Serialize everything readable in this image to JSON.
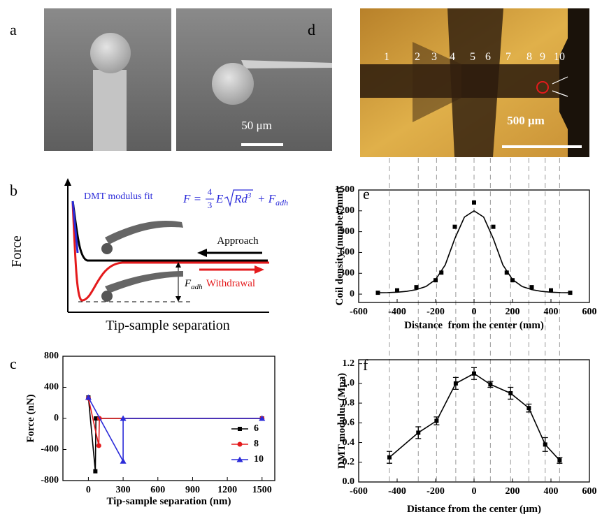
{
  "panels": {
    "a": {
      "label": "a",
      "scale": "50 μm"
    },
    "b": {
      "label": "b",
      "fit_label": "DMT modulus fit",
      "formula": {
        "lhs": "F =",
        "num": "4",
        "den": "3",
        "e": "E",
        "root": "Rd",
        "root_exp": "3",
        "plus": "+ F",
        "sub": "adh"
      },
      "approach": "Approach",
      "withdrawal": "Withdrawal",
      "f_adh": {
        "symbol": "F",
        "sub": "adh"
      },
      "ylabel": "Force",
      "xlabel": "Tip-sample separation"
    },
    "c": {
      "label": "c"
    },
    "d": {
      "label": "d",
      "positions": [
        "1",
        "2",
        "3",
        "4",
        "5",
        "6",
        "7",
        "8",
        "9",
        "10"
      ],
      "scale": "500 μm"
    },
    "e": {
      "label": "e"
    },
    "f": {
      "label": "f"
    }
  },
  "chart_data": [
    {
      "type": "line",
      "xlabel": "Tip-sample separation (nm)",
      "ylabel": "Force (nN)",
      "xlim": [
        -220,
        1610
      ],
      "ylim": [
        -800,
        800
      ],
      "xticks": [
        0,
        300,
        600,
        900,
        1200,
        1500
      ],
      "yticks": [
        -800,
        -400,
        0,
        400,
        800
      ],
      "legend": "lower right",
      "series": [
        {
          "name": "6",
          "color": "#000000",
          "marker": "square",
          "style": "line+markers",
          "x": [
            0,
            60,
            65,
            1500
          ],
          "values": [
            270,
            -680,
            0,
            0
          ]
        },
        {
          "name": "8",
          "color": "#e41a1c",
          "marker": "circle",
          "style": "line+markers",
          "x": [
            0,
            90,
            95,
            1500
          ],
          "values": [
            260,
            -350,
            0,
            0
          ]
        },
        {
          "name": "10",
          "color": "#2b2bd9",
          "marker": "triangle",
          "style": "line+markers",
          "x": [
            0,
            300,
            300,
            1500
          ],
          "values": [
            270,
            -550,
            0,
            0
          ]
        }
      ]
    },
    {
      "type": "scatter",
      "xlabel": "Distance  from the center (mm)",
      "ylabel": "Coil density (number/mm)",
      "xlim": [
        -600,
        600
      ],
      "ylim": [
        -120,
        1500
      ],
      "xticks": [
        -600,
        -400,
        -200,
        0,
        200,
        400,
        600
      ],
      "yticks": [
        0,
        300,
        600,
        900,
        1200,
        1500
      ],
      "series": [
        {
          "color": "#000000",
          "marker": "square",
          "style": "markers",
          "x": [
            -500,
            -400,
            -300,
            -200,
            -170,
            -100,
            0,
            100,
            170,
            200,
            300,
            400,
            500
          ],
          "values": [
            20,
            55,
            100,
            200,
            310,
            970,
            1320,
            970,
            310,
            200,
            100,
            55,
            20
          ]
        },
        {
          "color": "#000000",
          "style": "line",
          "x": [
            -500,
            -450,
            -400,
            -350,
            -300,
            -250,
            -200,
            -150,
            -100,
            -50,
            0,
            50,
            100,
            150,
            200,
            250,
            300,
            350,
            400,
            450,
            500
          ],
          "values": [
            20,
            22,
            28,
            40,
            65,
            110,
            210,
            420,
            800,
            1110,
            1200,
            1110,
            800,
            420,
            210,
            110,
            65,
            40,
            28,
            22,
            20
          ]
        }
      ]
    },
    {
      "type": "scatter",
      "xlabel": "Distance from the center (μm)",
      "ylabel": "DMT modulus (Mpa)",
      "xlim": [
        -600,
        600
      ],
      "ylim": [
        0,
        1.24
      ],
      "xticks": [
        -600,
        -400,
        -200,
        0,
        200,
        400,
        600
      ],
      "yticks": [
        {
          "value": 0,
          "label": "0.0"
        },
        0.2,
        0.4,
        0.6,
        0.8,
        {
          "value": 1,
          "label": "1.0"
        },
        1.2
      ],
      "series": [
        {
          "color": "#000000",
          "marker": "square",
          "style": "line+markers",
          "x": [
            -440,
            -290,
            -195,
            -95,
            0,
            85,
            190,
            285,
            370,
            445
          ],
          "values": [
            0.25,
            0.5,
            0.62,
            1.0,
            1.1,
            0.99,
            0.9,
            0.75,
            0.38,
            0.22
          ],
          "errors": [
            0.06,
            0.06,
            0.04,
            0.06,
            0.06,
            0.03,
            0.06,
            0.04,
            0.07,
            0.03
          ]
        }
      ]
    }
  ]
}
